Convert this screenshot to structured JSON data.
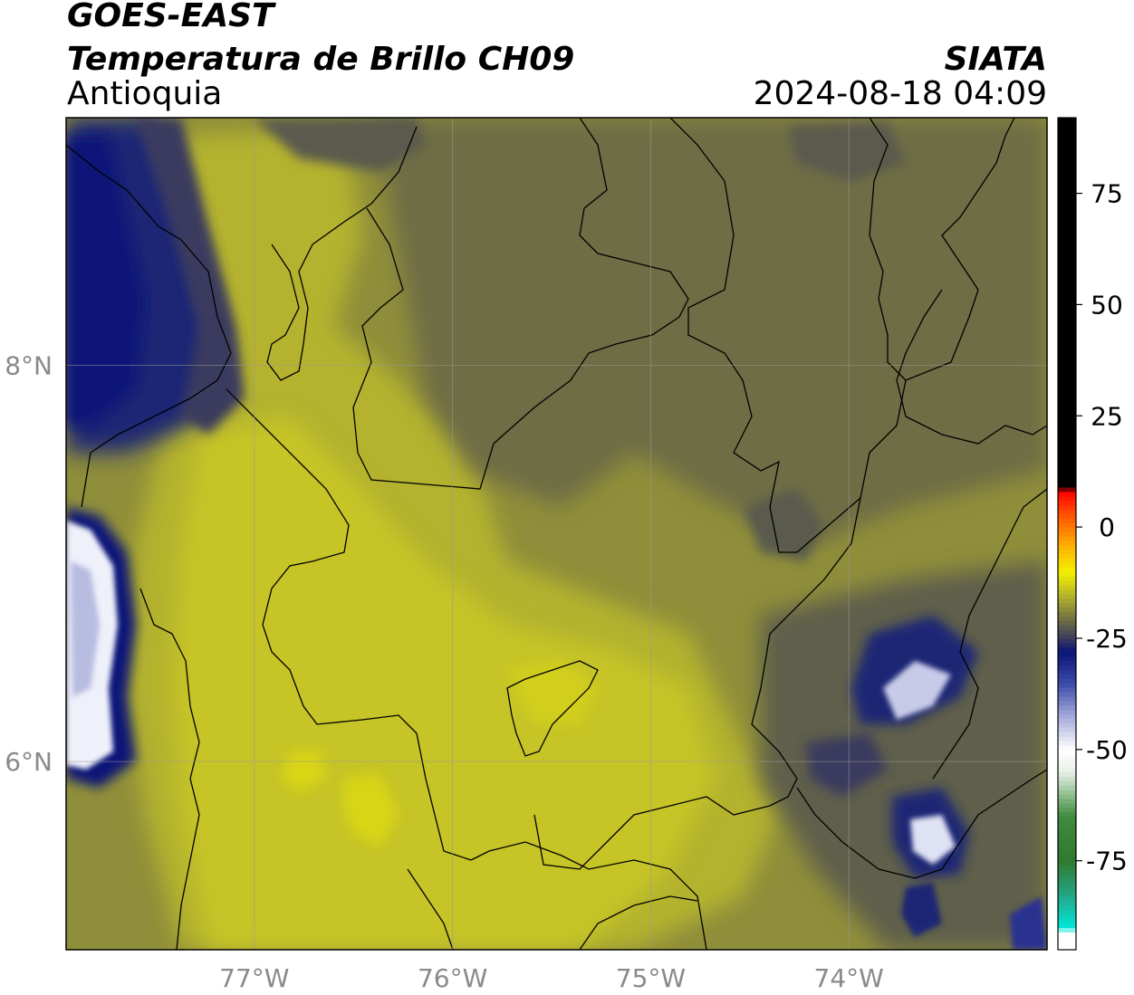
{
  "titles": {
    "satellite": "GOES-EAST",
    "product": "Temperatura de Brillo CH09",
    "region": "Antioquia",
    "organization": "SIATA",
    "timestamp": "2024-08-18 04:09"
  },
  "map": {
    "lon_range": [
      -77.95,
      -73.0
    ],
    "lat_range": [
      5.05,
      9.25
    ],
    "lon_ticks": [
      {
        "value": -77,
        "label": "77°W"
      },
      {
        "value": -76,
        "label": "76°W"
      },
      {
        "value": -75,
        "label": "75°W"
      },
      {
        "value": -74,
        "label": "74°W"
      }
    ],
    "lat_ticks": [
      {
        "value": 8,
        "label": "8°N"
      },
      {
        "value": 6,
        "label": "6°N"
      }
    ],
    "gridlines": true
  },
  "colorbar": {
    "range": [
      -95,
      92
    ],
    "ticks": [
      {
        "value": 75,
        "label": "75"
      },
      {
        "value": 50,
        "label": "50"
      },
      {
        "value": 25,
        "label": "25"
      },
      {
        "value": 0,
        "label": "0"
      },
      {
        "value": -25,
        "label": "-25"
      },
      {
        "value": -50,
        "label": "-50"
      },
      {
        "value": -75,
        "label": "-75"
      }
    ],
    "stops": [
      {
        "v": -95,
        "color": "#ffffff"
      },
      {
        "v": -91,
        "color": "#ffffff"
      },
      {
        "v": -90,
        "color": "#00e8d8"
      },
      {
        "v": -83,
        "color": "#22a88a"
      },
      {
        "v": -75,
        "color": "#2f7a2f"
      },
      {
        "v": -65,
        "color": "#3e8a3e"
      },
      {
        "v": -60,
        "color": "#8fbf8f"
      },
      {
        "v": -55,
        "color": "#e8f0e8"
      },
      {
        "v": -50,
        "color": "#ffffff"
      },
      {
        "v": -42,
        "color": "#9ea4d8"
      },
      {
        "v": -35,
        "color": "#3a4aa8"
      },
      {
        "v": -28,
        "color": "#0a1478"
      },
      {
        "v": -25,
        "color": "#3a3a5e"
      },
      {
        "v": -21,
        "color": "#6c6c44"
      },
      {
        "v": -15,
        "color": "#b8b828"
      },
      {
        "v": -10,
        "color": "#f4f000"
      },
      {
        "v": -4,
        "color": "#ffae00"
      },
      {
        "v": 3,
        "color": "#ff5000"
      },
      {
        "v": 8,
        "color": "#ff0000"
      },
      {
        "v": 9,
        "color": "#000000"
      },
      {
        "v": 92,
        "color": "#000000"
      }
    ]
  },
  "palette": {
    "hot_yellow": "#d8d418",
    "warm_yellow": "#c6c428",
    "olive": "#8f8e3a",
    "dark_olive": "#6e6d44",
    "gray_cloud": "#55554f",
    "cold_navy": "#1e2674",
    "deep_navy": "#0a1478",
    "cloud_white": "#f0f0fa"
  }
}
